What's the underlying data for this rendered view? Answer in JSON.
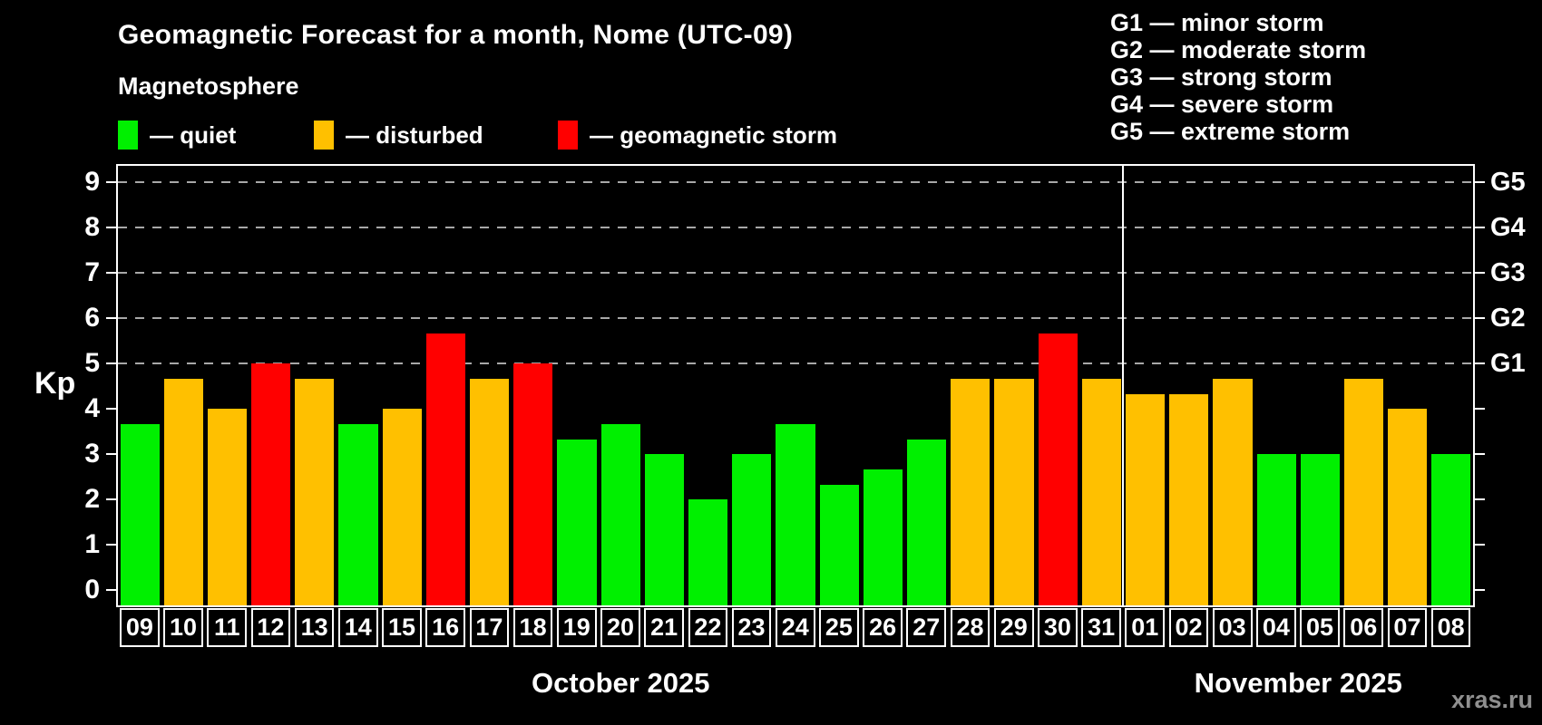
{
  "watermark": "xras.ru",
  "g_legend": [
    "G1 — minor storm",
    "G2 — moderate storm",
    "G3 — strong storm",
    "G4 — severe storm",
    "G5 — extreme storm"
  ],
  "chart_data": {
    "type": "bar",
    "title": "Geomagnetic Forecast for a month, Nome (UTC-09)",
    "subtitle": "Magnetosphere",
    "ylabel": "Kp",
    "ylim": [
      0,
      9
    ],
    "y_ticks": [
      0,
      1,
      2,
      3,
      4,
      5,
      6,
      7,
      8,
      9
    ],
    "grid": "dashed horizontal lines at Kp 5-9 only",
    "g_scale": [
      {
        "kp": 5,
        "label": "G1"
      },
      {
        "kp": 6,
        "label": "G2"
      },
      {
        "kp": 7,
        "label": "G3"
      },
      {
        "kp": 8,
        "label": "G4"
      },
      {
        "kp": 9,
        "label": "G5"
      }
    ],
    "legend": [
      {
        "state": "quiet",
        "label": "— quiet"
      },
      {
        "state": "disturbed",
        "label": "— disturbed"
      },
      {
        "state": "storm",
        "label": "— geomagnetic storm"
      }
    ],
    "colors": {
      "quiet": "#00f000",
      "disturbed": "#ffc000",
      "storm": "#ff0000",
      "frame": "#ffffff",
      "gridline": "#a8a8a8",
      "background": "#000000",
      "watermark": "#8f8f8f"
    },
    "months": [
      {
        "label": "October 2025",
        "day_count": 23
      },
      {
        "label": "November 2025",
        "day_count": 8
      }
    ],
    "days": [
      {
        "label": "09",
        "kp": 3.67,
        "state": "quiet"
      },
      {
        "label": "10",
        "kp": 4.67,
        "state": "disturbed"
      },
      {
        "label": "11",
        "kp": 4.0,
        "state": "disturbed"
      },
      {
        "label": "12",
        "kp": 5.0,
        "state": "storm"
      },
      {
        "label": "13",
        "kp": 4.67,
        "state": "disturbed"
      },
      {
        "label": "14",
        "kp": 3.67,
        "state": "quiet"
      },
      {
        "label": "15",
        "kp": 4.0,
        "state": "disturbed"
      },
      {
        "label": "16",
        "kp": 5.67,
        "state": "storm"
      },
      {
        "label": "17",
        "kp": 4.67,
        "state": "disturbed"
      },
      {
        "label": "18",
        "kp": 5.0,
        "state": "storm"
      },
      {
        "label": "19",
        "kp": 3.33,
        "state": "quiet"
      },
      {
        "label": "20",
        "kp": 3.67,
        "state": "quiet"
      },
      {
        "label": "21",
        "kp": 3.0,
        "state": "quiet"
      },
      {
        "label": "22",
        "kp": 2.0,
        "state": "quiet"
      },
      {
        "label": "23",
        "kp": 3.0,
        "state": "quiet"
      },
      {
        "label": "24",
        "kp": 3.67,
        "state": "quiet"
      },
      {
        "label": "25",
        "kp": 2.33,
        "state": "quiet"
      },
      {
        "label": "26",
        "kp": 2.67,
        "state": "quiet"
      },
      {
        "label": "27",
        "kp": 3.33,
        "state": "quiet"
      },
      {
        "label": "28",
        "kp": 4.67,
        "state": "disturbed"
      },
      {
        "label": "29",
        "kp": 4.67,
        "state": "disturbed"
      },
      {
        "label": "30",
        "kp": 5.67,
        "state": "storm"
      },
      {
        "label": "31",
        "kp": 4.67,
        "state": "disturbed"
      },
      {
        "label": "01",
        "kp": 4.33,
        "state": "disturbed"
      },
      {
        "label": "02",
        "kp": 4.33,
        "state": "disturbed"
      },
      {
        "label": "03",
        "kp": 4.67,
        "state": "disturbed"
      },
      {
        "label": "04",
        "kp": 3.0,
        "state": "quiet"
      },
      {
        "label": "05",
        "kp": 3.0,
        "state": "quiet"
      },
      {
        "label": "06",
        "kp": 4.67,
        "state": "disturbed"
      },
      {
        "label": "07",
        "kp": 4.0,
        "state": "disturbed"
      },
      {
        "label": "08",
        "kp": 3.0,
        "state": "quiet"
      }
    ]
  }
}
